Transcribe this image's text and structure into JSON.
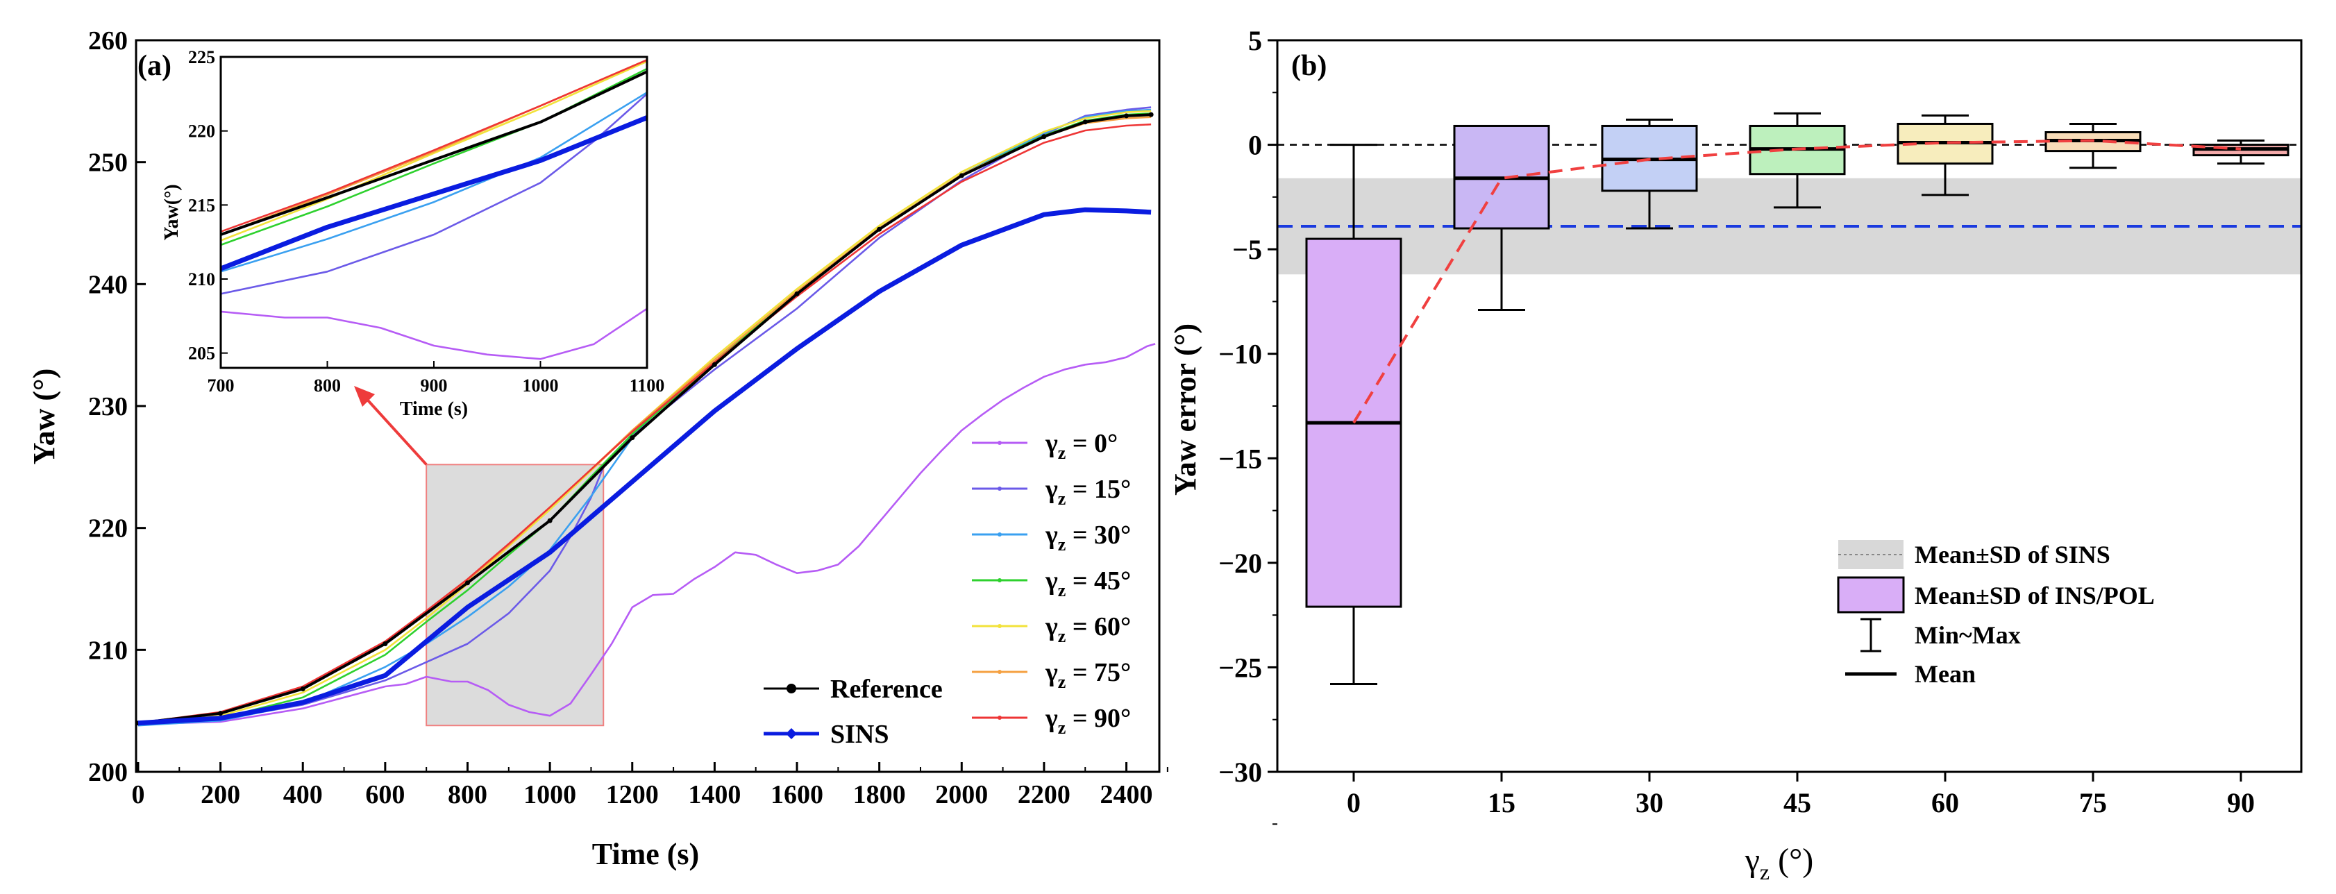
{
  "chart_data": [
    {
      "panel": "(a)",
      "type": "line",
      "xlabel": "Time (s)",
      "ylabel": "Yaw (°)",
      "xlim": [
        -5,
        2480
      ],
      "ylim": [
        200,
        260
      ],
      "xticks": [
        0,
        200,
        400,
        600,
        800,
        1000,
        1200,
        1400,
        1600,
        1800,
        2000,
        2200,
        2400
      ],
      "yticks": [
        200,
        210,
        220,
        230,
        240,
        250,
        260
      ],
      "highlight_region": {
        "x": [
          700,
          1130
        ],
        "y": [
          203.8,
          225.2
        ]
      },
      "series": [
        {
          "name": "Reference",
          "color": "#000000",
          "marker": "dot",
          "x": [
            0,
            200,
            400,
            600,
            800,
            1000,
            1200,
            1400,
            1600,
            1800,
            2000,
            2200,
            2300,
            2400,
            2460
          ],
          "y": [
            204.0,
            204.8,
            206.8,
            210.5,
            215.5,
            220.6,
            227.4,
            233.4,
            239.2,
            244.5,
            248.9,
            252.1,
            253.3,
            253.8,
            253.9
          ]
        },
        {
          "name": "SINS",
          "color": "#0a1ce0",
          "marker": "diamond",
          "x": [
            0,
            200,
            400,
            600,
            800,
            1000,
            1200,
            1400,
            1600,
            1800,
            2000,
            2200,
            2300,
            2400,
            2460
          ],
          "y": [
            204.0,
            204.4,
            205.7,
            207.9,
            213.5,
            218.0,
            223.8,
            229.6,
            234.7,
            239.4,
            243.2,
            245.7,
            246.1,
            246.0,
            245.9
          ]
        },
        {
          "name": "γz = 0°",
          "color": "#b65cf5",
          "x": [
            0,
            200,
            400,
            600,
            650,
            700,
            760,
            800,
            850,
            900,
            950,
            1000,
            1050,
            1100,
            1150,
            1200,
            1250,
            1300,
            1350,
            1400,
            1450,
            1500,
            1550,
            1600,
            1650,
            1700,
            1750,
            1800,
            1850,
            1900,
            1950,
            2000,
            2050,
            2100,
            2150,
            2200,
            2250,
            2300,
            2350,
            2400,
            2450,
            2470
          ],
          "y": [
            203.9,
            204.1,
            205.2,
            207.0,
            207.2,
            207.8,
            207.4,
            207.4,
            206.7,
            205.5,
            204.9,
            204.6,
            205.6,
            208.0,
            210.5,
            213.5,
            214.5,
            214.6,
            215.8,
            216.8,
            218.0,
            217.8,
            217.0,
            216.3,
            216.5,
            217.0,
            218.5,
            220.5,
            222.5,
            224.5,
            226.3,
            228.0,
            229.3,
            230.5,
            231.5,
            232.4,
            233.0,
            233.4,
            233.6,
            234.0,
            234.9,
            235.1
          ]
        },
        {
          "name": "γz = 15°",
          "color": "#6b5ae8",
          "x": [
            0,
            200,
            400,
            600,
            700,
            800,
            900,
            1000,
            1050,
            1100,
            1130,
            1200,
            1400,
            1600,
            1800,
            2000,
            2200,
            2300,
            2400,
            2460
          ],
          "y": [
            203.9,
            204.3,
            205.5,
            207.5,
            209.0,
            210.5,
            213.0,
            216.5,
            219.3,
            222.5,
            225.0,
            227.6,
            233.0,
            238.0,
            243.8,
            248.5,
            252.3,
            253.8,
            254.3,
            254.5
          ]
        },
        {
          "name": "γz = 30°",
          "color": "#3aa0f0",
          "x": [
            0,
            200,
            400,
            600,
            700,
            800,
            900,
            1000,
            1100,
            1200,
            1400,
            1600,
            1800,
            2000,
            2200,
            2300,
            2400,
            2460
          ],
          "y": [
            203.8,
            204.2,
            205.6,
            208.6,
            210.5,
            212.7,
            215.2,
            218.2,
            222.6,
            227.4,
            233.5,
            239.2,
            244.5,
            249.0,
            252.4,
            253.7,
            254.2,
            254.3
          ]
        },
        {
          "name": "γz = 45°",
          "color": "#2ed12e",
          "x": [
            0,
            200,
            400,
            600,
            700,
            800,
            900,
            1000,
            1100,
            1200,
            1400,
            1600,
            1800,
            2000,
            2200,
            2300,
            2400,
            2460
          ],
          "y": [
            203.9,
            204.4,
            206.1,
            209.6,
            212.3,
            214.9,
            217.8,
            220.6,
            224.2,
            227.7,
            233.6,
            239.3,
            244.6,
            249.0,
            252.2,
            253.4,
            253.9,
            254.0
          ]
        },
        {
          "name": "γz = 60°",
          "color": "#f2e23a",
          "x": [
            0,
            200,
            400,
            600,
            700,
            800,
            900,
            1000,
            1100,
            1200,
            1400,
            1600,
            1800,
            2000,
            2200,
            2300,
            2400,
            2460
          ],
          "y": [
            203.9,
            204.6,
            206.5,
            210.0,
            212.6,
            215.4,
            218.5,
            221.5,
            224.7,
            228.0,
            234.0,
            239.6,
            244.8,
            249.2,
            252.5,
            253.6,
            254.1,
            254.2
          ]
        },
        {
          "name": "γz = 75°",
          "color": "#f5a040",
          "x": [
            0,
            200,
            400,
            600,
            700,
            800,
            900,
            1000,
            1100,
            1200,
            1400,
            1600,
            1800,
            2000,
            2200,
            2300,
            2400,
            2460
          ],
          "y": [
            204.0,
            204.8,
            206.9,
            210.5,
            213.0,
            215.7,
            218.6,
            221.7,
            224.8,
            228.0,
            233.8,
            239.4,
            244.6,
            249.0,
            252.1,
            253.2,
            253.6,
            253.7
          ]
        },
        {
          "name": "γz = 90°",
          "color": "#ee3535",
          "x": [
            0,
            200,
            400,
            600,
            700,
            800,
            900,
            1000,
            1100,
            1200,
            1400,
            1600,
            1800,
            2000,
            2200,
            2300,
            2400,
            2460
          ],
          "y": [
            204.0,
            204.9,
            207.0,
            210.7,
            213.2,
            215.8,
            218.7,
            221.7,
            224.8,
            227.9,
            233.6,
            239.0,
            244.1,
            248.4,
            251.6,
            252.6,
            253.0,
            253.1
          ]
        }
      ],
      "legend": {
        "left": [
          "Reference",
          "SINS"
        ],
        "right": [
          {
            "sym": "γ",
            "sub": "z",
            "val": " = 0°"
          },
          {
            "sym": "γ",
            "sub": "z",
            "val": " = 15°"
          },
          {
            "sym": "γ",
            "sub": "z",
            "val": " = 30°"
          },
          {
            "sym": "γ",
            "sub": "z",
            "val": " = 45°"
          },
          {
            "sym": "γ",
            "sub": "z",
            "val": " = 60°"
          },
          {
            "sym": "γ",
            "sub": "z",
            "val": " = 75°"
          },
          {
            "sym": "γ",
            "sub": "z",
            "val": " = 90°"
          }
        ]
      },
      "inset": {
        "xlabel": "Time (s)",
        "ylabel": "Yaw(°)",
        "xlim": [
          700,
          1100
        ],
        "ylim": [
          204,
          225
        ],
        "xticks": [
          700,
          800,
          900,
          1000,
          1100
        ],
        "yticks": [
          205,
          210,
          215,
          220,
          225
        ]
      }
    },
    {
      "panel": "(b)",
      "type": "box",
      "xlabel_sym": "γ",
      "xlabel_sub": "z",
      "xlabel_rest": " (°)",
      "ylabel": "Yaw error (°)",
      "ylim": [
        -30,
        5
      ],
      "yticks": [
        5,
        0,
        -5,
        -10,
        -15,
        -20,
        -25,
        -30
      ],
      "categories": [
        "0",
        "15",
        "30",
        "45",
        "60",
        "75",
        "90"
      ],
      "boxes": [
        {
          "min": -25.8,
          "q1": -22.1,
          "mean": -13.3,
          "q3": -4.5,
          "max": 0.0,
          "color": "#d9aef7"
        },
        {
          "min": -7.9,
          "q1": -4.0,
          "mean": -1.6,
          "q3": 0.9,
          "max": 0.9,
          "color": "#c9b7f4"
        },
        {
          "min": -4.0,
          "q1": -2.2,
          "mean": -0.7,
          "q3": 0.9,
          "max": 1.2,
          "color": "#c3d0f5"
        },
        {
          "min": -3.0,
          "q1": -1.4,
          "mean": -0.2,
          "q3": 0.9,
          "max": 1.5,
          "color": "#bdf0bd"
        },
        {
          "min": -2.4,
          "q1": -0.9,
          "mean": 0.1,
          "q3": 1.0,
          "max": 1.4,
          "color": "#f7edbd"
        },
        {
          "min": -1.1,
          "q1": -0.3,
          "mean": 0.2,
          "q3": 0.6,
          "max": 1.0,
          "color": "#f8dcb8"
        },
        {
          "min": -0.9,
          "q1": -0.5,
          "mean": -0.2,
          "q3": 0.0,
          "max": 0.2,
          "color": "#f4aaaa"
        }
      ],
      "sins_band": {
        "mean": -3.9,
        "lower": -6.2,
        "upper": -1.6
      },
      "zero_line": 0,
      "legend": [
        "Mean±SD of SINS",
        "Mean±SD of INS/POL",
        "Min~Max",
        "Mean"
      ]
    }
  ]
}
